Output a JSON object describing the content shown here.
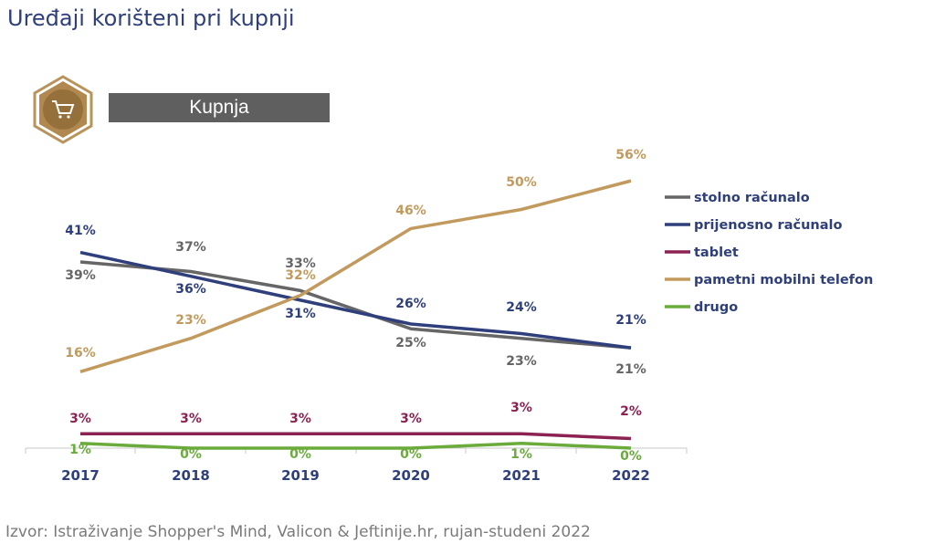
{
  "title": "Uređaji korišteni pri kupnji",
  "banner": {
    "label": "Kupnja",
    "icon": "shopping-cart-icon",
    "badge_color": "#a07b40"
  },
  "source": "Izvor: Istraživanje Shopper's Mind, Valicon & Jeftinije.hr, rujan-studeni 2022",
  "chart_data": {
    "type": "line",
    "categories": [
      "2017",
      "2018",
      "2019",
      "2020",
      "2021",
      "2022"
    ],
    "ylim": [
      0,
      60
    ],
    "grid": false,
    "legend": "right",
    "series": [
      {
        "name": "stolno računalo",
        "color": "#666666",
        "values": [
          39,
          37,
          33,
          25,
          23,
          21
        ]
      },
      {
        "name": "prijenosno računalo",
        "color": "#2e3f7c",
        "values": [
          41,
          36,
          31,
          26,
          24,
          21
        ]
      },
      {
        "name": "tablet",
        "color": "#8b2252",
        "values": [
          3,
          3,
          3,
          3,
          3,
          2
        ]
      },
      {
        "name": "pametni mobilni telefon",
        "color": "#c29a5e",
        "values": [
          16,
          23,
          32,
          46,
          50,
          56
        ]
      },
      {
        "name": "drugo",
        "color": "#6aab3c",
        "values": [
          1,
          0,
          0,
          0,
          1,
          0
        ]
      }
    ]
  }
}
